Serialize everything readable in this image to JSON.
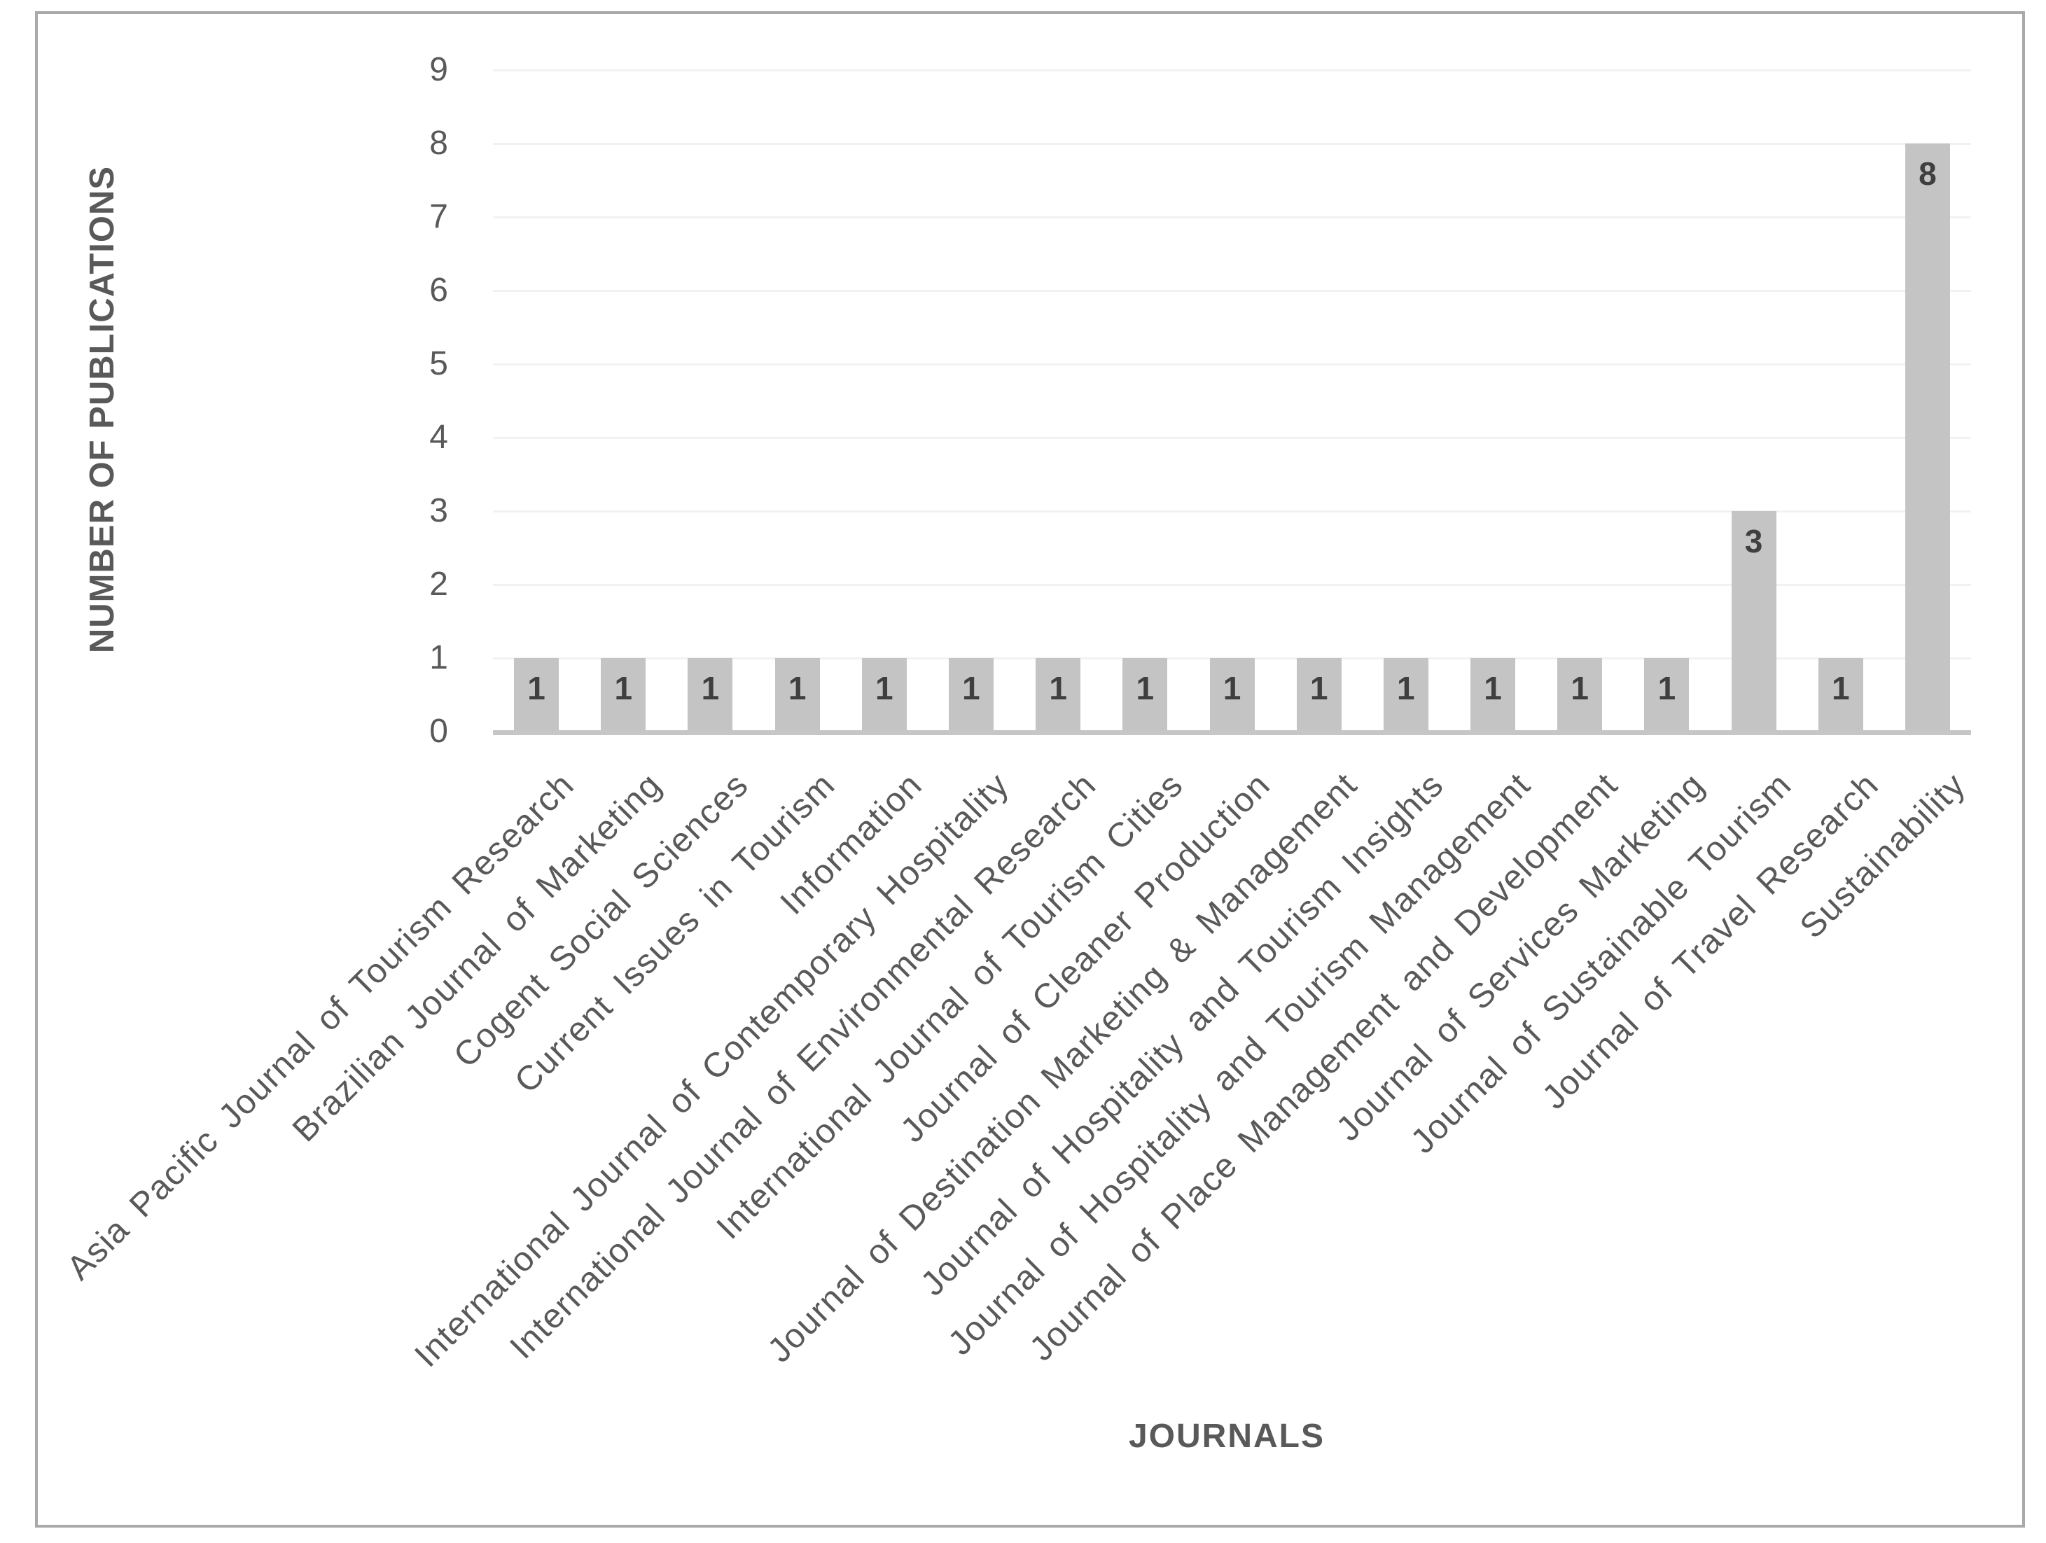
{
  "figure": {
    "y_axis_title": "NUMBER OF PUBLICATIONS",
    "x_axis_title": "JOURNALS"
  },
  "colors": {
    "bar_fill": "#c4c4c4",
    "bar_value_label": "#3f3f3f",
    "axis_text": "#595959",
    "axis_line": "#c6c6c6",
    "gridline": "#f2f2f2",
    "figure_border": "#a9a9a9",
    "background": "#ffffff"
  },
  "chart_data": {
    "type": "bar",
    "title": "",
    "xlabel": "JOURNALS",
    "ylabel": "NUMBER OF PUBLICATIONS",
    "categories": [
      "Asia Pacific Journal of Tourism Research",
      "Brazilian Journal of Marketing",
      "Cogent Social Sciences",
      "Current Issues in Tourism",
      "Information",
      "International Journal of Contemporary Hospitality",
      "International Journal of Environmental Research",
      "International Journal of Tourism Cities",
      "Journal of Cleaner Production",
      "Journal of Destination Marketing & Management",
      "Journal of Hospitality and Tourism Insights",
      "Journal of Hospitality and Tourism Management",
      "Journal of Place Management and Development",
      "Journal of Services Marketing",
      "Journal of Sustainable Tourism",
      "Journal of Travel Research",
      "Sustainability"
    ],
    "values": [
      1,
      1,
      1,
      1,
      1,
      1,
      1,
      1,
      1,
      1,
      1,
      1,
      1,
      1,
      3,
      1,
      8
    ],
    "data_labels_shown": true,
    "ylim": [
      0,
      9
    ],
    "yticks": [
      0,
      1,
      2,
      3,
      4,
      5,
      6,
      7,
      8,
      9
    ],
    "grid": "horizontal-faint",
    "legend_position": "none",
    "x_tick_rotation_deg": 45
  }
}
